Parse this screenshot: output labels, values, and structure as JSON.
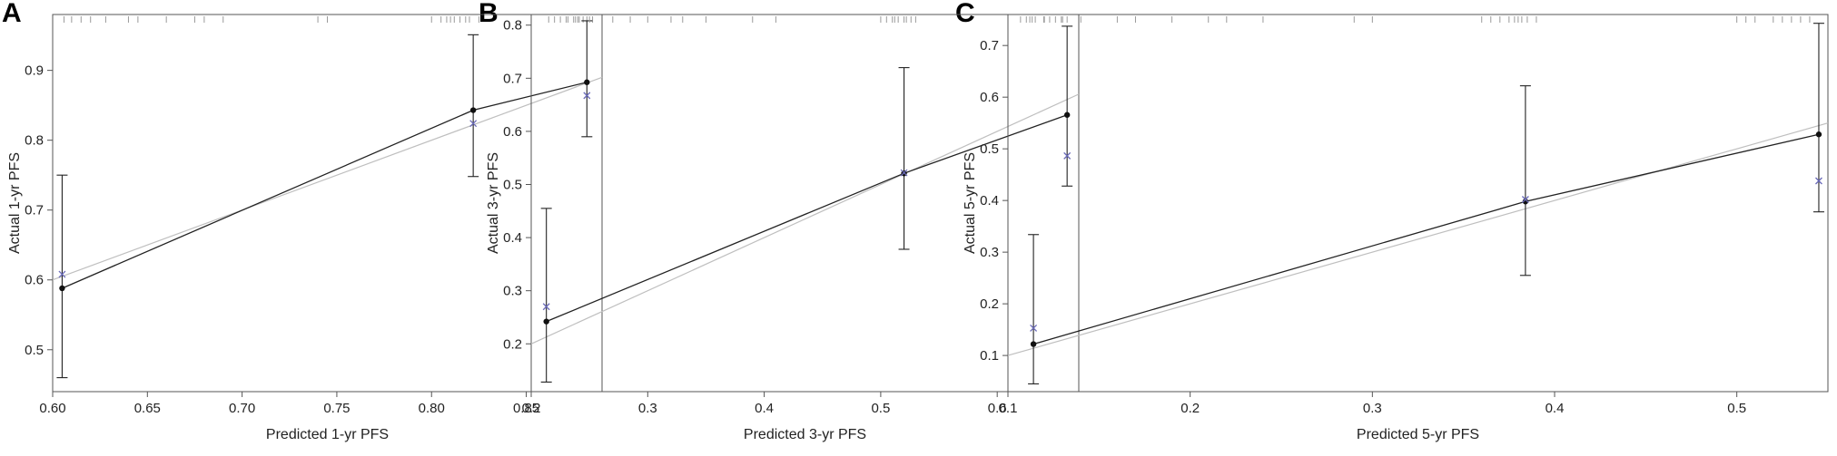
{
  "panels": [
    {
      "letter": "A"
    },
    {
      "letter": "B"
    },
    {
      "letter": "C"
    }
  ],
  "colors": {
    "observed_line": "#222222",
    "ideal_line": "#bfbfbf",
    "corrected_marker": "#6a6ab8",
    "rug": "#9a9a9a",
    "frame": "#555555"
  },
  "chart_data": [
    {
      "type": "line",
      "xlabel": "Predicted 1-yr PFS",
      "ylabel": "Actual 1-yr PFS",
      "xlim": [
        0.6,
        0.89
      ],
      "ylim": [
        0.44,
        0.98
      ],
      "xticks": [
        "0.60",
        "0.65",
        "0.70",
        "0.75",
        "0.80",
        "0.85"
      ],
      "yticks": [
        "0.5",
        "0.6",
        "0.7",
        "0.8",
        "0.9"
      ],
      "ideal_line": [
        [
          0.6,
          0.6
        ],
        [
          0.89,
          0.89
        ]
      ],
      "series": [
        {
          "x": [
            0.605,
            0.822,
            0.882
          ],
          "y": [
            0.588,
            0.843,
            0.883
          ],
          "ci_low": [
            0.46,
            0.748,
            0.805
          ],
          "ci_high": [
            0.75,
            0.951,
            0.971
          ]
        },
        {
          "x": [
            0.605,
            0.822,
            0.882
          ],
          "y": [
            0.608,
            0.824,
            0.864
          ]
        }
      ],
      "rug": [
        0.606,
        0.61,
        0.615,
        0.62,
        0.628,
        0.64,
        0.645,
        0.66,
        0.675,
        0.68,
        0.69,
        0.74,
        0.745,
        0.8,
        0.805,
        0.808,
        0.81,
        0.812,
        0.815,
        0.818,
        0.82,
        0.825,
        0.868,
        0.872,
        0.875,
        0.876,
        0.878,
        0.88,
        0.882,
        0.885
      ]
    },
    {
      "type": "line",
      "xlabel": "Predicted 3-yr PFS",
      "ylabel": "Actual 3-yr PFS",
      "xlim": [
        0.2,
        0.67
      ],
      "ylim": [
        0.11,
        0.82
      ],
      "xticks": [
        "0.2",
        "0.3",
        "0.4",
        "0.5",
        "0.6"
      ],
      "yticks": [
        "0.2",
        "0.3",
        "0.4",
        "0.5",
        "0.6",
        "0.7",
        "0.8"
      ],
      "ideal_line": [
        [
          0.2,
          0.2
        ],
        [
          0.67,
          0.67
        ]
      ],
      "series": [
        {
          "x": [
            0.213,
            0.52,
            0.66
          ],
          "y": [
            0.242,
            0.521,
            0.631
          ],
          "ci_low": [
            0.128,
            0.378,
            0.497
          ],
          "ci_high": [
            0.455,
            0.72,
            0.798
          ]
        },
        {
          "x": [
            0.213,
            0.52,
            0.66
          ],
          "y": [
            0.27,
            0.522,
            0.554
          ]
        }
      ],
      "rug": [
        0.215,
        0.22,
        0.23,
        0.24,
        0.25,
        0.27,
        0.285,
        0.3,
        0.32,
        0.33,
        0.35,
        0.39,
        0.41,
        0.5,
        0.505,
        0.51,
        0.512,
        0.515,
        0.52,
        0.522,
        0.526,
        0.53,
        0.62,
        0.625,
        0.63,
        0.64,
        0.645,
        0.65,
        0.655,
        0.66
      ]
    },
    {
      "type": "line",
      "xlabel": "Predicted 5-yr PFS",
      "ylabel": "Actual 5-yr PFS",
      "xlim": [
        0.1,
        0.55
      ],
      "ylim": [
        0.03,
        0.76
      ],
      "xticks": [
        "0.1",
        "0.2",
        "0.3",
        "0.4",
        "0.5"
      ],
      "yticks": [
        "0.1",
        "0.2",
        "0.3",
        "0.4",
        "0.5",
        "0.6",
        "0.7"
      ],
      "ideal_line": [
        [
          0.1,
          0.1
        ],
        [
          0.55,
          0.55
        ]
      ],
      "series": [
        {
          "x": [
            0.114,
            0.384,
            0.545
          ],
          "y": [
            0.122,
            0.398,
            0.528
          ],
          "ci_low": [
            0.045,
            0.255,
            0.378
          ],
          "ci_high": [
            0.334,
            0.622,
            0.743
          ]
        },
        {
          "x": [
            0.114,
            0.384,
            0.545
          ],
          "y": [
            0.153,
            0.402,
            0.438
          ]
        }
      ],
      "rug": [
        0.112,
        0.115,
        0.12,
        0.13,
        0.14,
        0.16,
        0.17,
        0.19,
        0.21,
        0.22,
        0.24,
        0.29,
        0.3,
        0.36,
        0.365,
        0.37,
        0.375,
        0.378,
        0.38,
        0.382,
        0.385,
        0.39,
        0.5,
        0.505,
        0.51,
        0.52,
        0.525,
        0.53,
        0.535,
        0.54
      ]
    }
  ]
}
